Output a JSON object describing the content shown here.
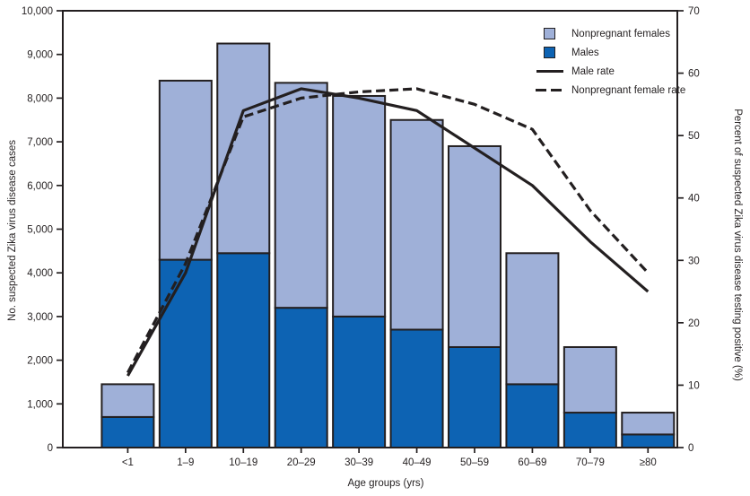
{
  "chart_data": {
    "type": "combo_stacked_bar_line",
    "title": "",
    "ink_color": "#231f20",
    "background": "#ffffff",
    "categories": [
      "<1",
      "1–9",
      "10–19",
      "20–29",
      "30–39",
      "40–49",
      "50–59",
      "60–69",
      "70–79",
      "≥80"
    ],
    "bar_series": [
      {
        "name": "Males",
        "color": "#0d63b3",
        "values": [
          700,
          4300,
          4450,
          3200,
          3000,
          2700,
          2300,
          1450,
          800,
          300
        ]
      },
      {
        "name": "Nonpregnant females",
        "color": "#9fb0d8",
        "values": [
          750,
          4100,
          4800,
          5150,
          5050,
          4800,
          4600,
          3000,
          1500,
          500
        ]
      }
    ],
    "bar_totals": [
      1450,
      8400,
      9250,
      8350,
      8050,
      7500,
      6900,
      4450,
      2300,
      800
    ],
    "line_series": [
      {
        "name": "Male rate",
        "style": "solid",
        "color": "#231f20",
        "values": [
          11.5,
          28,
          54,
          57.5,
          56,
          54,
          48,
          42,
          33,
          25
        ]
      },
      {
        "name": "Nonpregnant female rate",
        "style": "dashed",
        "color": "#231f20",
        "values": [
          12,
          29.5,
          53,
          56,
          57,
          57.5,
          55,
          51,
          38,
          28
        ]
      }
    ],
    "left_axis": {
      "label": "No. suspected Zika virus disease cases",
      "min": 0,
      "max": 10000,
      "tick_step": 1000,
      "tick_labels": [
        "0",
        "1,000",
        "2,000",
        "3,000",
        "4,000",
        "5,000",
        "6,000",
        "7,000",
        "8,000",
        "9,000",
        "10,000"
      ]
    },
    "right_axis": {
      "label": "Percent of suspected Zika virus disease testing positive (%)",
      "min": 0,
      "max": 70,
      "tick_step": 10,
      "tick_labels": [
        "0",
        "10",
        "20",
        "30",
        "40",
        "50",
        "60",
        "70"
      ]
    },
    "x_axis": {
      "label": "Age groups (yrs)"
    },
    "legend": [
      {
        "label": "Nonpregnant females",
        "swatch": "square",
        "color": "#9fb0d8"
      },
      {
        "label": "Males",
        "swatch": "square",
        "color": "#0d63b3"
      },
      {
        "label": "Male rate",
        "swatch": "line-solid",
        "color": "#231f20"
      },
      {
        "label": "Nonpregnant female rate",
        "swatch": "line-dashed",
        "color": "#231f20"
      }
    ],
    "layout_hints": {
      "grid": false,
      "legend_position": "top-right-inside",
      "bars": "stacked",
      "lines_axis": "right"
    }
  }
}
